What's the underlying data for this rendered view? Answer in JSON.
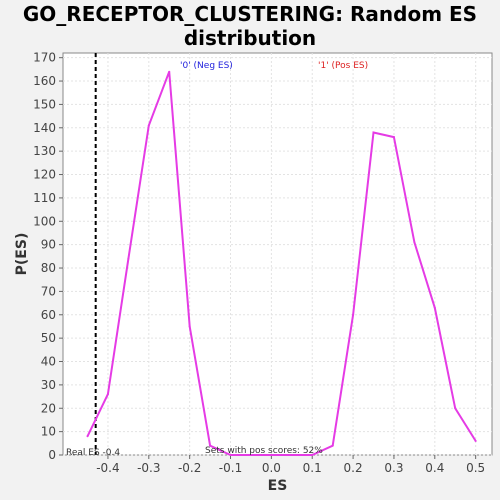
{
  "chart_data": {
    "type": "line",
    "title_line1": "GO_RECEPTOR_CLUSTERING: Random ES",
    "title_line2": "distribution",
    "xlabel": "ES",
    "ylabel": "P(ES)",
    "xlim": [
      -0.51,
      0.54
    ],
    "ylim": [
      0,
      172
    ],
    "x_ticks": [
      "-0.4",
      "-0.3",
      "-0.2",
      "-0.1",
      "0.0",
      "0.1",
      "0.2",
      "0.3",
      "0.4",
      "0.5"
    ],
    "x_tick_values": [
      -0.4,
      -0.3,
      -0.2,
      -0.1,
      0.0,
      0.1,
      0.2,
      0.3,
      0.4,
      0.5
    ],
    "y_ticks": [
      0,
      10,
      20,
      30,
      40,
      50,
      60,
      70,
      80,
      90,
      100,
      110,
      120,
      130,
      140,
      150,
      160,
      170
    ],
    "grid": true,
    "legend": [
      {
        "label": "'0' (Neg ES)",
        "color": "#2222dd"
      },
      {
        "label": "'1' (Pos ES)",
        "color": "#dd2222"
      }
    ],
    "series": [
      {
        "color": "#e53be5",
        "x": [
          -0.45,
          -0.4,
          -0.35,
          -0.3,
          -0.25,
          -0.2,
          -0.15,
          -0.1,
          -0.05,
          0.0,
          0.05,
          0.1,
          0.15,
          0.2,
          0.25,
          0.3,
          0.35,
          0.4,
          0.45,
          0.5
        ],
        "y": [
          8,
          26,
          84,
          141,
          164,
          55,
          4,
          0,
          0,
          0,
          0,
          0,
          4,
          60,
          138,
          136,
          91,
          63,
          20,
          6
        ]
      }
    ],
    "real_es": {
      "value": -0.43,
      "label": "Real ES -0.4"
    },
    "annotation": "Sets with pos scores: 52%"
  }
}
